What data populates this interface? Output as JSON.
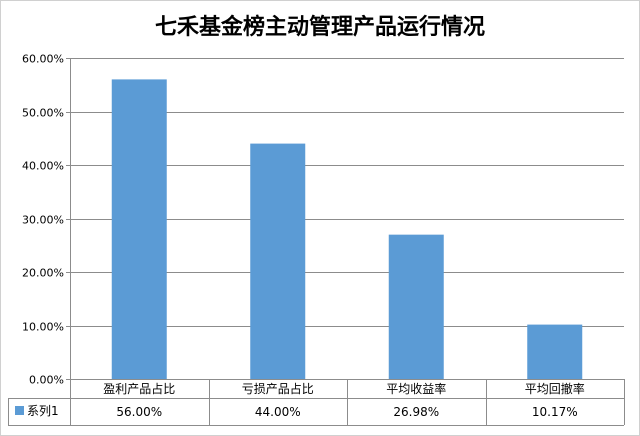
{
  "chart_data": {
    "type": "bar",
    "title": "七禾基金榜主动管理产品运行情况",
    "categories": [
      "盈利产品占比",
      "亏损产品占比",
      "平均收益率",
      "平均回撤率"
    ],
    "series": [
      {
        "name": "系列1",
        "values": [
          56.0,
          44.0,
          26.98,
          10.17
        ],
        "value_labels": [
          "56.00%",
          "44.00%",
          "26.98%",
          "10.17%"
        ]
      }
    ],
    "ylim": [
      0,
      60
    ],
    "yticks": [
      "0.00%",
      "10.00%",
      "20.00%",
      "30.00%",
      "40.00%",
      "50.00%",
      "60.00%"
    ],
    "grid": true,
    "legend": "data-table",
    "bar_color": "#5b9bd5",
    "grid_color": "#8c8c8c"
  }
}
